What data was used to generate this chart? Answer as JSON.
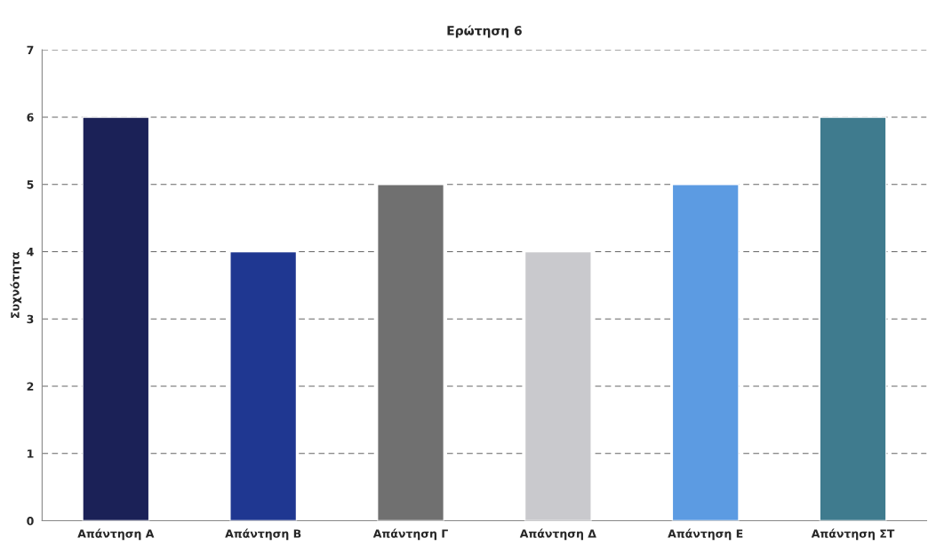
{
  "chart_data": {
    "type": "bar",
    "title": "Ερώτηση 6",
    "ylabel": "Συχνότητα",
    "categories": [
      "Απάντηση Α",
      "Απάντηση Β",
      "Απάντηση Γ",
      "Απάντηση Δ",
      "Απάντηση Ε",
      "Απάντηση ΣΤ"
    ],
    "values": [
      6,
      4,
      5,
      4,
      5,
      6
    ],
    "colors": [
      "#1b2157",
      "#1f3791",
      "#707070",
      "#c9c9cd",
      "#5c9be2",
      "#3f7b8e"
    ],
    "ylim": [
      0,
      7
    ],
    "yticks": [
      0,
      1,
      2,
      3,
      4,
      5,
      6,
      7
    ],
    "grid": "y",
    "legend": false
  }
}
